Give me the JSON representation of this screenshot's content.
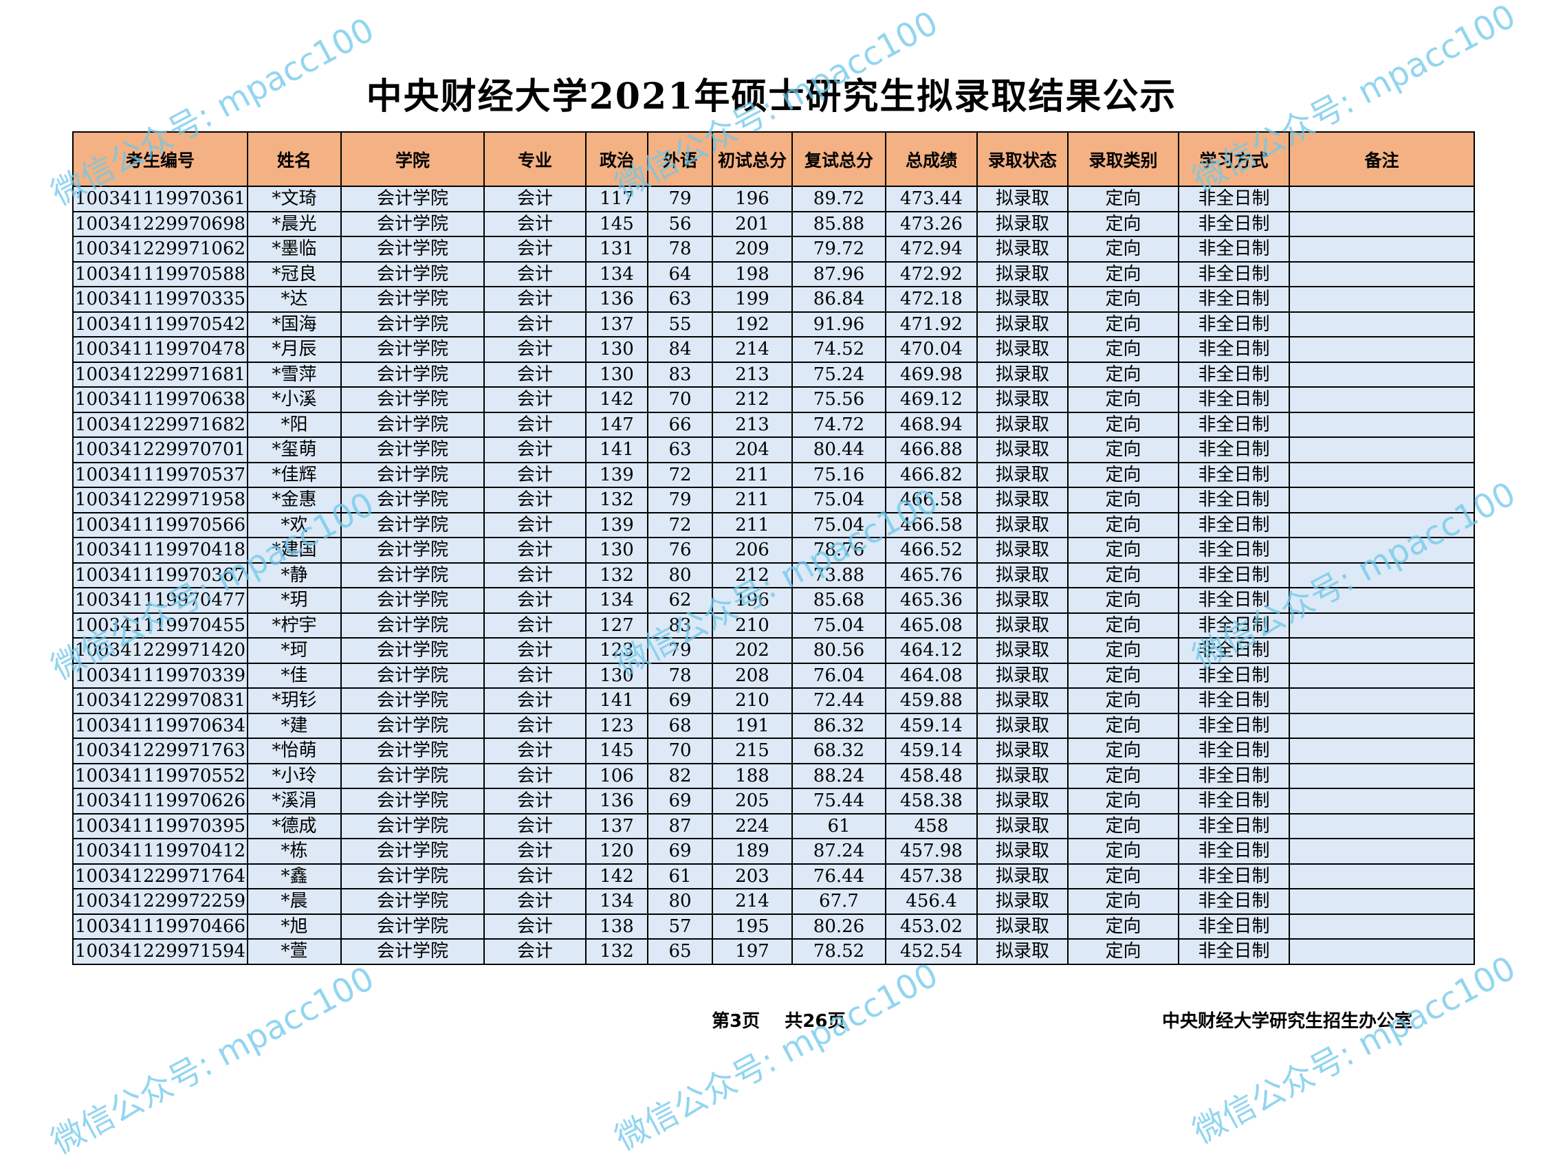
{
  "title": "中央财经大学2021年硕士研究生拟录取结果公示",
  "columns": [
    "考生编号",
    "姓名",
    "学院",
    "专业",
    "政治",
    "外语",
    "初试总分",
    "复试总分",
    "总成绩",
    "录取状态",
    "录取类别",
    "学习方式",
    "备注"
  ],
  "rows": [
    [
      "100341119970361",
      "*文琦",
      "会计学院",
      "会计",
      "117",
      "79",
      "196",
      "89.72",
      "473.44",
      "拟录取",
      "定向",
      "非全日制",
      ""
    ],
    [
      "100341229970698",
      "*晨光",
      "会计学院",
      "会计",
      "145",
      "56",
      "201",
      "85.88",
      "473.26",
      "拟录取",
      "定向",
      "非全日制",
      ""
    ],
    [
      "100341229971062",
      "*墨临",
      "会计学院",
      "会计",
      "131",
      "78",
      "209",
      "79.72",
      "472.94",
      "拟录取",
      "定向",
      "非全日制",
      ""
    ],
    [
      "100341119970588",
      "*冠良",
      "会计学院",
      "会计",
      "134",
      "64",
      "198",
      "87.96",
      "472.92",
      "拟录取",
      "定向",
      "非全日制",
      ""
    ],
    [
      "100341119970335",
      "*达",
      "会计学院",
      "会计",
      "136",
      "63",
      "199",
      "86.84",
      "472.18",
      "拟录取",
      "定向",
      "非全日制",
      ""
    ],
    [
      "100341119970542",
      "*国海",
      "会计学院",
      "会计",
      "137",
      "55",
      "192",
      "91.96",
      "471.92",
      "拟录取",
      "定向",
      "非全日制",
      ""
    ],
    [
      "100341119970478",
      "*月辰",
      "会计学院",
      "会计",
      "130",
      "84",
      "214",
      "74.52",
      "470.04",
      "拟录取",
      "定向",
      "非全日制",
      ""
    ],
    [
      "100341229971681",
      "*雪萍",
      "会计学院",
      "会计",
      "130",
      "83",
      "213",
      "75.24",
      "469.98",
      "拟录取",
      "定向",
      "非全日制",
      ""
    ],
    [
      "100341119970638",
      "*小溪",
      "会计学院",
      "会计",
      "142",
      "70",
      "212",
      "75.56",
      "469.12",
      "拟录取",
      "定向",
      "非全日制",
      ""
    ],
    [
      "100341229971682",
      "*阳",
      "会计学院",
      "会计",
      "147",
      "66",
      "213",
      "74.72",
      "468.94",
      "拟录取",
      "定向",
      "非全日制",
      ""
    ],
    [
      "100341229970701",
      "*玺萌",
      "会计学院",
      "会计",
      "141",
      "63",
      "204",
      "80.44",
      "466.88",
      "拟录取",
      "定向",
      "非全日制",
      ""
    ],
    [
      "100341119970537",
      "*佳辉",
      "会计学院",
      "会计",
      "139",
      "72",
      "211",
      "75.16",
      "466.82",
      "拟录取",
      "定向",
      "非全日制",
      ""
    ],
    [
      "100341229971958",
      "*金惠",
      "会计学院",
      "会计",
      "132",
      "79",
      "211",
      "75.04",
      "466.58",
      "拟录取",
      "定向",
      "非全日制",
      ""
    ],
    [
      "100341119970566",
      "*欢",
      "会计学院",
      "会计",
      "139",
      "72",
      "211",
      "75.04",
      "466.58",
      "拟录取",
      "定向",
      "非全日制",
      ""
    ],
    [
      "100341119970418",
      "*建国",
      "会计学院",
      "会计",
      "130",
      "76",
      "206",
      "78.76",
      "466.52",
      "拟录取",
      "定向",
      "非全日制",
      ""
    ],
    [
      "100341119970367",
      "*静",
      "会计学院",
      "会计",
      "132",
      "80",
      "212",
      "73.88",
      "465.76",
      "拟录取",
      "定向",
      "非全日制",
      ""
    ],
    [
      "100341119970477",
      "*玥",
      "会计学院",
      "会计",
      "134",
      "62",
      "196",
      "85.68",
      "465.36",
      "拟录取",
      "定向",
      "非全日制",
      ""
    ],
    [
      "100341119970455",
      "*柠宇",
      "会计学院",
      "会计",
      "127",
      "83",
      "210",
      "75.04",
      "465.08",
      "拟录取",
      "定向",
      "非全日制",
      ""
    ],
    [
      "100341229971420",
      "*珂",
      "会计学院",
      "会计",
      "123",
      "79",
      "202",
      "80.56",
      "464.12",
      "拟录取",
      "定向",
      "非全日制",
      ""
    ],
    [
      "100341119970339",
      "*佳",
      "会计学院",
      "会计",
      "130",
      "78",
      "208",
      "76.04",
      "464.08",
      "拟录取",
      "定向",
      "非全日制",
      ""
    ],
    [
      "100341229970831",
      "*玥钐",
      "会计学院",
      "会计",
      "141",
      "69",
      "210",
      "72.44",
      "459.88",
      "拟录取",
      "定向",
      "非全日制",
      ""
    ],
    [
      "100341119970634",
      "*建",
      "会计学院",
      "会计",
      "123",
      "68",
      "191",
      "86.32",
      "459.14",
      "拟录取",
      "定向",
      "非全日制",
      ""
    ],
    [
      "100341229971763",
      "*怡萌",
      "会计学院",
      "会计",
      "145",
      "70",
      "215",
      "68.32",
      "459.14",
      "拟录取",
      "定向",
      "非全日制",
      ""
    ],
    [
      "100341119970552",
      "*小玲",
      "会计学院",
      "会计",
      "106",
      "82",
      "188",
      "88.24",
      "458.48",
      "拟录取",
      "定向",
      "非全日制",
      ""
    ],
    [
      "100341119970626",
      "*溪涓",
      "会计学院",
      "会计",
      "136",
      "69",
      "205",
      "75.44",
      "458.38",
      "拟录取",
      "定向",
      "非全日制",
      ""
    ],
    [
      "100341119970395",
      "*德成",
      "会计学院",
      "会计",
      "137",
      "87",
      "224",
      "61",
      "458",
      "拟录取",
      "定向",
      "非全日制",
      ""
    ],
    [
      "100341119970412",
      "*栋",
      "会计学院",
      "会计",
      "120",
      "69",
      "189",
      "87.24",
      "457.98",
      "拟录取",
      "定向",
      "非全日制",
      ""
    ],
    [
      "100341229971764",
      "*鑫",
      "会计学院",
      "会计",
      "142",
      "61",
      "203",
      "76.44",
      "457.38",
      "拟录取",
      "定向",
      "非全日制",
      ""
    ],
    [
      "100341229972259",
      "*晨",
      "会计学院",
      "会计",
      "134",
      "80",
      "214",
      "67.7",
      "456.4",
      "拟录取",
      "定向",
      "非全日制",
      ""
    ],
    [
      "100341119970466",
      "*旭",
      "会计学院",
      "会计",
      "138",
      "57",
      "195",
      "80.26",
      "453.02",
      "拟录取",
      "定向",
      "非全日制",
      ""
    ],
    [
      "100341229971594",
      "*萱",
      "会计学院",
      "会计",
      "132",
      "65",
      "197",
      "78.52",
      "452.54",
      "拟录取",
      "定向",
      "非全日制",
      ""
    ]
  ],
  "footer": {
    "page_info": "第3页    共26页",
    "office": "中央财经大学研究生招生办公室"
  },
  "watermark": {
    "text": "微信公众号: mpacc100",
    "color": "#6ec8eb"
  }
}
